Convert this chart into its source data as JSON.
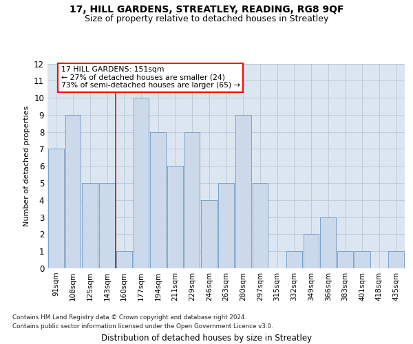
{
  "title": "17, HILL GARDENS, STREATLEY, READING, RG8 9QF",
  "subtitle": "Size of property relative to detached houses in Streatley",
  "xlabel": "Distribution of detached houses by size in Streatley",
  "ylabel": "Number of detached properties",
  "categories": [
    "91sqm",
    "108sqm",
    "125sqm",
    "143sqm",
    "160sqm",
    "177sqm",
    "194sqm",
    "211sqm",
    "229sqm",
    "246sqm",
    "263sqm",
    "280sqm",
    "297sqm",
    "315sqm",
    "332sqm",
    "349sqm",
    "366sqm",
    "383sqm",
    "401sqm",
    "418sqm",
    "435sqm"
  ],
  "values": [
    7,
    9,
    5,
    5,
    1,
    10,
    8,
    6,
    8,
    4,
    5,
    9,
    5,
    0,
    1,
    2,
    3,
    1,
    1,
    0,
    1
  ],
  "bar_color": "#ccd9ea",
  "bar_edge_color": "#7ba3c8",
  "red_line_x": 3.5,
  "annotation_line1": "17 HILL GARDENS: 151sqm",
  "annotation_line2": "← 27% of detached houses are smaller (24)",
  "annotation_line3": "73% of semi-detached houses are larger (65) →",
  "annotation_box_color": "white",
  "annotation_box_edge_color": "red",
  "ylim": [
    0,
    12
  ],
  "yticks": [
    0,
    1,
    2,
    3,
    4,
    5,
    6,
    7,
    8,
    9,
    10,
    11,
    12
  ],
  "grid_color": "#b8c8d8",
  "footer_line1": "Contains HM Land Registry data © Crown copyright and database right 2024.",
  "footer_line2": "Contains public sector information licensed under the Open Government Licence v3.0.",
  "background_color": "#dce6f0",
  "fig_background": "white",
  "title_fontsize": 10,
  "subtitle_fontsize": 9
}
